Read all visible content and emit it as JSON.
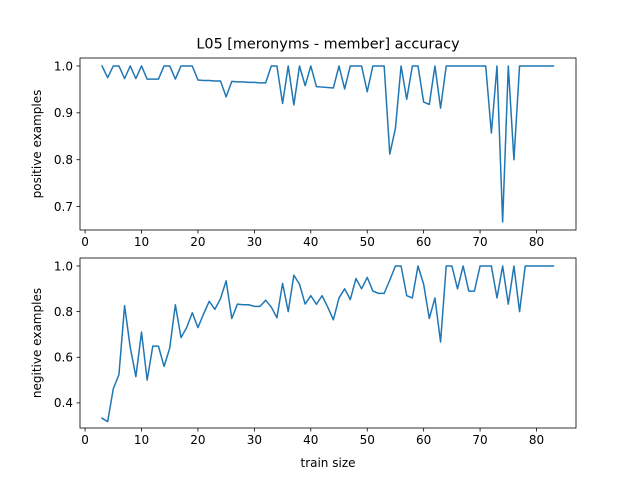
{
  "title": "L05 [meronyms - member] accuracy",
  "colors": {
    "line": "#1f77b4"
  },
  "chart_data": [
    {
      "type": "line",
      "ylabel": "positive examples",
      "xlabel": "",
      "xlim": [
        -0.9,
        87
      ],
      "ylim": [
        0.65,
        1.017
      ],
      "xticks": [
        0,
        10,
        20,
        30,
        40,
        50,
        60,
        70,
        80
      ],
      "yticks": [
        0.7,
        0.8,
        0.9,
        1.0
      ],
      "ytick_labels": [
        "0.7",
        "0.8",
        "0.9",
        "1.0"
      ],
      "grid": false,
      "series": [
        {
          "x": [
            3,
            4,
            5,
            6,
            7,
            8,
            9,
            10,
            11,
            12,
            13,
            14,
            15,
            16,
            17,
            18,
            19,
            20,
            21,
            22,
            23,
            24,
            25,
            26,
            27,
            28,
            29,
            30,
            31,
            32,
            33,
            34,
            35,
            36,
            37,
            38,
            39,
            40,
            41,
            42,
            43,
            44,
            45,
            46,
            47,
            48,
            49,
            50,
            51,
            52,
            53,
            54,
            55,
            56,
            57,
            58,
            59,
            60,
            61,
            62,
            63,
            64,
            65,
            66,
            67,
            68,
            69,
            70,
            71,
            72,
            73,
            74,
            75,
            76,
            77,
            78,
            79,
            80,
            81,
            82,
            83
          ],
          "y": [
            1.0,
            0.975,
            1.0,
            1.0,
            0.973,
            1.0,
            0.973,
            1.0,
            0.972,
            0.972,
            0.972,
            1.0,
            1.0,
            0.972,
            1.0,
            1.0,
            1.0,
            0.97,
            0.969,
            0.969,
            0.968,
            0.968,
            0.934,
            0.967,
            0.966,
            0.966,
            0.965,
            0.965,
            0.964,
            0.964,
            1.0,
            1.0,
            0.92,
            1.0,
            0.917,
            1.0,
            0.958,
            1.0,
            0.956,
            0.955,
            0.954,
            0.953,
            1.0,
            0.951,
            1.0,
            1.0,
            1.0,
            0.945,
            1.0,
            1.0,
            1.0,
            0.812,
            0.867,
            1.0,
            0.929,
            1.0,
            1.0,
            0.923,
            0.918,
            1.0,
            0.91,
            1.0,
            1.0,
            1.0,
            1.0,
            1.0,
            1.0,
            1.0,
            1.0,
            0.857,
            1.0,
            0.667,
            1.0,
            0.8,
            1.0,
            1.0,
            1.0,
            1.0,
            1.0,
            1.0,
            1.0
          ]
        }
      ]
    },
    {
      "type": "line",
      "ylabel": "negitive examples",
      "xlabel": "train size",
      "xlim": [
        -0.9,
        87
      ],
      "ylim": [
        0.29,
        1.035
      ],
      "xticks": [
        0,
        10,
        20,
        30,
        40,
        50,
        60,
        70,
        80
      ],
      "yticks": [
        0.4,
        0.6,
        0.8,
        1.0
      ],
      "ytick_labels": [
        "0.4",
        "0.6",
        "0.8",
        "1.0"
      ],
      "grid": false,
      "series": [
        {
          "x": [
            3,
            4,
            5,
            6,
            7,
            8,
            9,
            10,
            11,
            12,
            13,
            14,
            15,
            16,
            17,
            18,
            19,
            20,
            21,
            22,
            23,
            24,
            25,
            26,
            27,
            28,
            29,
            30,
            31,
            32,
            33,
            34,
            35,
            36,
            37,
            38,
            39,
            40,
            41,
            42,
            43,
            44,
            45,
            46,
            47,
            48,
            49,
            50,
            51,
            52,
            53,
            54,
            55,
            56,
            57,
            58,
            59,
            60,
            61,
            62,
            63,
            64,
            65,
            66,
            67,
            68,
            69,
            70,
            71,
            72,
            73,
            74,
            75,
            76,
            77,
            78,
            79,
            80,
            81,
            82,
            83
          ],
          "y": [
            0.333,
            0.318,
            0.462,
            0.524,
            0.826,
            0.644,
            0.515,
            0.71,
            0.5,
            0.649,
            0.649,
            0.56,
            0.64,
            0.83,
            0.686,
            0.73,
            0.795,
            0.73,
            0.79,
            0.845,
            0.81,
            0.857,
            0.935,
            0.77,
            0.833,
            0.83,
            0.83,
            0.823,
            0.823,
            0.85,
            0.82,
            0.773,
            0.924,
            0.8,
            0.96,
            0.92,
            0.833,
            0.87,
            0.832,
            0.87,
            0.82,
            0.764,
            0.86,
            0.9,
            0.853,
            0.945,
            0.9,
            0.95,
            0.89,
            0.88,
            0.88,
            0.938,
            1.0,
            1.0,
            0.87,
            0.86,
            1.0,
            0.92,
            0.77,
            0.86,
            0.667,
            1.0,
            1.0,
            0.9,
            1.0,
            0.89,
            0.89,
            1.0,
            1.0,
            1.0,
            0.86,
            1.0,
            0.833,
            1.0,
            0.8,
            1.0,
            1.0,
            1.0,
            1.0,
            1.0,
            1.0
          ]
        }
      ]
    }
  ]
}
